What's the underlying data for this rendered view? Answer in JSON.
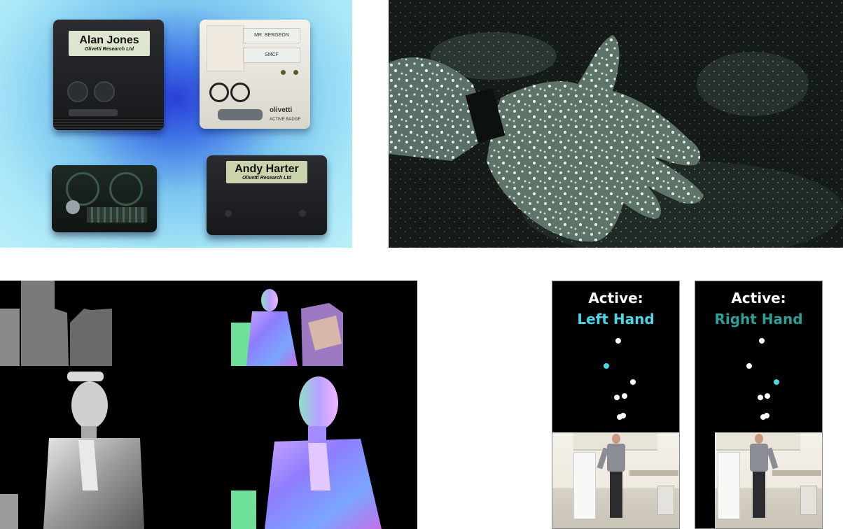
{
  "badges_photo": {
    "badge_top_left": {
      "name": "Alan Jones",
      "company": "Olivetti Research Ltd"
    },
    "badge_top_right": {
      "tag1": "MR. BERGEON",
      "tag2": "SMCF",
      "brand": "olivetti",
      "model": "ACTIVE BADGE"
    },
    "badge_bottom_right": {
      "name": "Andy Harter",
      "company": "Olivetti Research Ltd"
    }
  },
  "active_left": {
    "title": "Active:",
    "hand": "Left Hand",
    "accent": "#4fd6e6"
  },
  "active_right": {
    "title": "Active:",
    "hand": "Right Hand",
    "accent": "#2e9e96"
  },
  "colors": {
    "joint": "#ffffff",
    "background": "#000000"
  }
}
